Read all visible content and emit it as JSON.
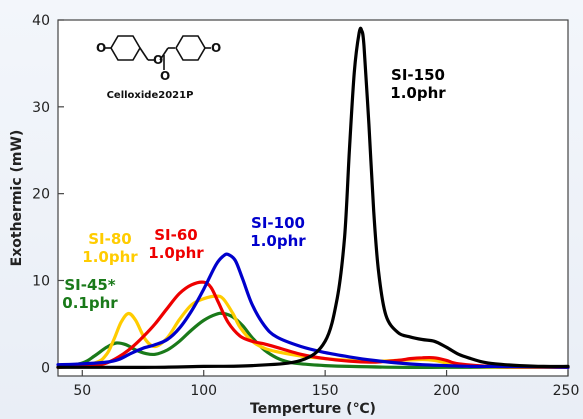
{
  "chart_data": {
    "type": "line",
    "title": "",
    "xlabel": "Temperture (℃)",
    "ylabel": "Exothermic (mW)",
    "xlim": [
      40,
      250
    ],
    "ylim": [
      -1,
      40
    ],
    "xticks": [
      50,
      100,
      150,
      200,
      250
    ],
    "yticks": [
      0,
      10,
      20,
      30,
      40
    ],
    "grid": false,
    "legend": "inline annotations",
    "structure_label": "Celloxide2021P",
    "series": [
      {
        "label_lines": [
          "SI-150",
          "1.0phr"
        ],
        "color": "#000000",
        "x": [
          40,
          60,
          80,
          100,
          120,
          140,
          150,
          155,
          158,
          160,
          162,
          164,
          165,
          166,
          168,
          170,
          172,
          175,
          180,
          185,
          190,
          195,
          200,
          205,
          210,
          215,
          220,
          230,
          240,
          250
        ],
        "y": [
          0,
          0,
          0,
          0.1,
          0.2,
          0.8,
          3,
          8,
          15,
          25,
          34,
          38.5,
          38.8,
          37,
          28,
          18,
          11,
          6,
          4,
          3.5,
          3.2,
          3,
          2.3,
          1.5,
          1,
          0.6,
          0.4,
          0.2,
          0.1,
          0.1
        ]
      },
      {
        "label_lines": [
          "SI-100",
          "1.0phr"
        ],
        "color": "#0000cc",
        "x": [
          40,
          50,
          60,
          65,
          70,
          75,
          80,
          85,
          90,
          95,
          100,
          105,
          108,
          110,
          113,
          116,
          120,
          125,
          130,
          140,
          150,
          160,
          170,
          180,
          190,
          200,
          210,
          220,
          230,
          250
        ],
        "y": [
          0.3,
          0.4,
          0.6,
          0.9,
          1.6,
          2.2,
          2.6,
          3.2,
          4.5,
          6.5,
          9,
          11.8,
          12.8,
          13,
          12.3,
          10.2,
          7.2,
          4.8,
          3.5,
          2.4,
          1.7,
          1.2,
          0.8,
          0.5,
          0.3,
          0.2,
          0.1,
          0.1,
          0.1,
          0
        ]
      },
      {
        "label_lines": [
          "SI-60",
          "1.0phr"
        ],
        "color": "#ee0000",
        "x": [
          40,
          55,
          60,
          65,
          70,
          75,
          80,
          85,
          90,
          95,
          100,
          103,
          106,
          110,
          115,
          120,
          125,
          130,
          140,
          150,
          160,
          170,
          180,
          185,
          190,
          195,
          200,
          205,
          220,
          250
        ],
        "y": [
          0,
          0.2,
          0.5,
          1.2,
          2.2,
          3.5,
          5,
          6.8,
          8.5,
          9.5,
          9.8,
          9.2,
          7.5,
          5.2,
          3.6,
          3,
          2.7,
          2.3,
          1.5,
          1,
          0.7,
          0.6,
          0.8,
          1,
          1.1,
          1.1,
          0.8,
          0.4,
          0.1,
          0
        ]
      },
      {
        "label_lines": [
          "SI-80",
          "1.0phr"
        ],
        "color": "#ffcc00",
        "x": [
          40,
          55,
          60,
          63,
          66,
          69,
          72,
          76,
          80,
          85,
          90,
          95,
          100,
          105,
          108,
          112,
          115,
          120,
          125,
          130,
          140,
          150,
          160,
          170,
          180,
          190,
          195,
          200,
          210,
          250
        ],
        "y": [
          0,
          0.5,
          1.5,
          3.2,
          5.2,
          6.2,
          5.4,
          3.2,
          2.4,
          3.4,
          5.5,
          7.2,
          7.9,
          8.2,
          7.9,
          6.2,
          4.6,
          3,
          2.2,
          1.8,
          1.3,
          1,
          0.8,
          0.7,
          0.8,
          0.9,
          0.8,
          0.5,
          0.1,
          0
        ]
      },
      {
        "label_lines": [
          "SI-45*",
          "0.1phr"
        ],
        "color": "#1a7a1a",
        "x": [
          40,
          50,
          55,
          60,
          64,
          68,
          72,
          76,
          80,
          85,
          90,
          95,
          100,
          105,
          108,
          112,
          116,
          120,
          125,
          130,
          135,
          140,
          150,
          160,
          180,
          200,
          220,
          250
        ],
        "y": [
          0,
          0.5,
          1.3,
          2.3,
          2.8,
          2.6,
          2,
          1.6,
          1.5,
          2,
          3,
          4.3,
          5.4,
          6.1,
          6.2,
          5.8,
          4.8,
          3.4,
          2,
          1.1,
          0.6,
          0.4,
          0.2,
          0.1,
          0,
          0,
          0,
          0
        ]
      }
    ]
  }
}
